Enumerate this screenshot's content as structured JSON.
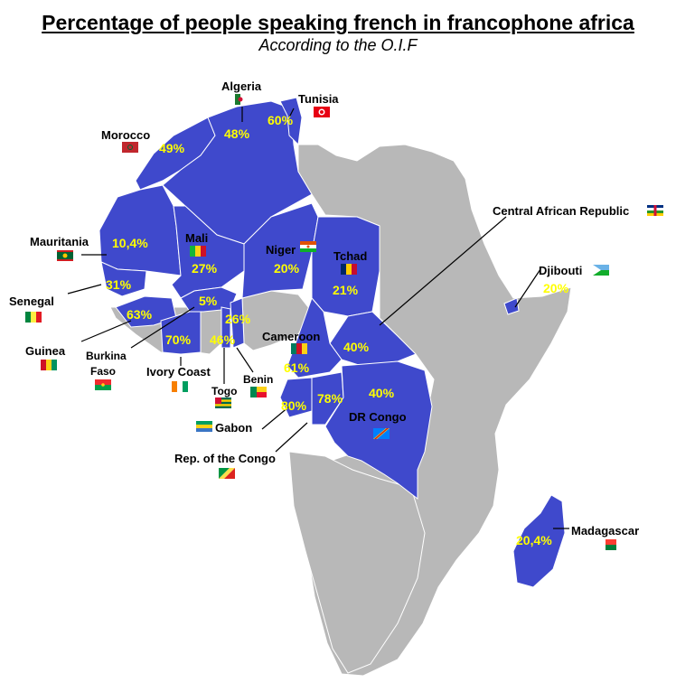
{
  "title": "Percentage of people speaking french in francophone africa",
  "subtitle": "According to the O.I.F",
  "colors": {
    "francophone": "#3f49cc",
    "other": "#b8b8b8",
    "percent_label": "#ffff00"
  },
  "countries": [
    {
      "id": "algeria",
      "name": "Algeria",
      "percent": "48%"
    },
    {
      "id": "tunisia",
      "name": "Tunisia",
      "percent": "60%"
    },
    {
      "id": "morocco",
      "name": "Morocco",
      "percent": "49%"
    },
    {
      "id": "mauritania",
      "name": "Mauritania",
      "percent": "10,4%"
    },
    {
      "id": "mali",
      "name": "Mali",
      "percent": "27%"
    },
    {
      "id": "niger",
      "name": "Niger",
      "percent": "20%"
    },
    {
      "id": "tchad",
      "name": "Tchad",
      "percent": "21%"
    },
    {
      "id": "car",
      "name": "Central African Republic",
      "percent": "40%"
    },
    {
      "id": "djibouti",
      "name": "Djibouti",
      "percent": "20%"
    },
    {
      "id": "senegal",
      "name": "Senegal",
      "percent": "31%"
    },
    {
      "id": "guinea",
      "name": "Guinea",
      "percent": "63%"
    },
    {
      "id": "burkina",
      "name": "Burkina Faso",
      "name_line1": "Burkina",
      "name_line2": "Faso",
      "percent": "5%"
    },
    {
      "id": "ivory",
      "name": "Ivory Coast",
      "percent": "70%"
    },
    {
      "id": "togo",
      "name": "Togo",
      "percent": "46%"
    },
    {
      "id": "benin",
      "name": "Benin",
      "percent": "26%"
    },
    {
      "id": "cameroon",
      "name": "Cameroon",
      "percent": "61%"
    },
    {
      "id": "gabon",
      "name": "Gabon",
      "percent": "80%"
    },
    {
      "id": "congo",
      "name": "Rep. of the Congo",
      "percent": "78%"
    },
    {
      "id": "drc",
      "name": "DR Congo",
      "percent": "40%"
    },
    {
      "id": "madagascar",
      "name": "Madagascar",
      "percent": "20,4%"
    }
  ]
}
